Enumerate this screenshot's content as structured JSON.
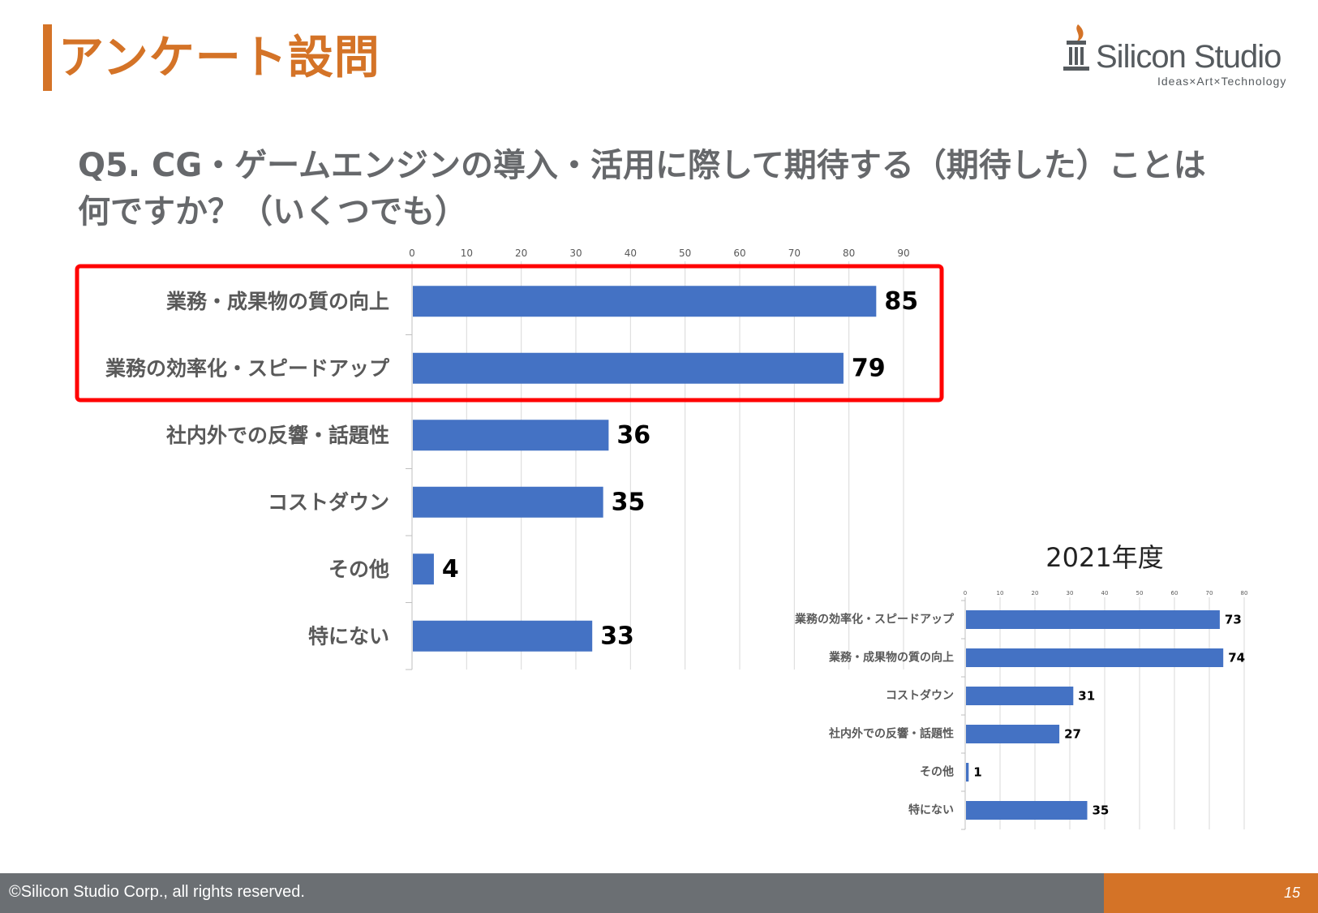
{
  "header": {
    "title": "アンケート設問"
  },
  "logo": {
    "name": "Silicon Studio",
    "tagline": "Ideas×Art×Technology"
  },
  "question": {
    "line1": "Q5. CG・ゲームエンジンの導入・活用に際して期待する（期待した）ことは",
    "line2": "何ですか？（いくつでも）"
  },
  "colors": {
    "accent": "#d47327",
    "bar": "#4472c4",
    "highlight": "#ff0000",
    "footer": "#6b6f73"
  },
  "chart_data": [
    {
      "type": "bar",
      "orientation": "horizontal",
      "title": "",
      "categories": [
        "業務・成果物の質の向上",
        "業務の効率化・スピードアップ",
        "社内外での反響・話題性",
        "コストダウン",
        "その他",
        "特にない"
      ],
      "values": [
        85,
        79,
        36,
        35,
        4,
        33
      ],
      "xlim": [
        0,
        90
      ],
      "ticks": [
        0,
        10,
        20,
        30,
        40,
        50,
        60,
        70,
        80,
        90
      ],
      "tick_labels": [
        "0",
        "10",
        "20",
        "30",
        "40",
        "50",
        "60",
        "70",
        "80",
        "90"
      ],
      "data_labels": [
        "85",
        "79",
        "36",
        "35",
        "4",
        "33"
      ],
      "highlighted": [
        "業務・成果物の質の向上",
        "業務の効率化・スピードアップ"
      ],
      "grid": true
    },
    {
      "type": "bar",
      "orientation": "horizontal",
      "title": "2021年度",
      "categories": [
        "業務の効率化・スピードアップ",
        "業務・成果物の質の向上",
        "コストダウン",
        "社内外での反響・話題性",
        "その他",
        "特にない"
      ],
      "values": [
        73,
        74,
        31,
        27,
        1,
        35
      ],
      "xlim": [
        0,
        80
      ],
      "ticks": [
        0,
        10,
        20,
        30,
        40,
        50,
        60,
        70,
        80
      ],
      "tick_labels": [
        "0",
        "10",
        "20",
        "30",
        "40",
        "50",
        "60",
        "70",
        "80"
      ],
      "data_labels": [
        "73",
        "74",
        "31",
        "27",
        "1",
        "35"
      ],
      "grid": true
    }
  ],
  "footer": {
    "copyright": "©Silicon Studio Corp., all rights reserved.",
    "page_number": "15"
  }
}
